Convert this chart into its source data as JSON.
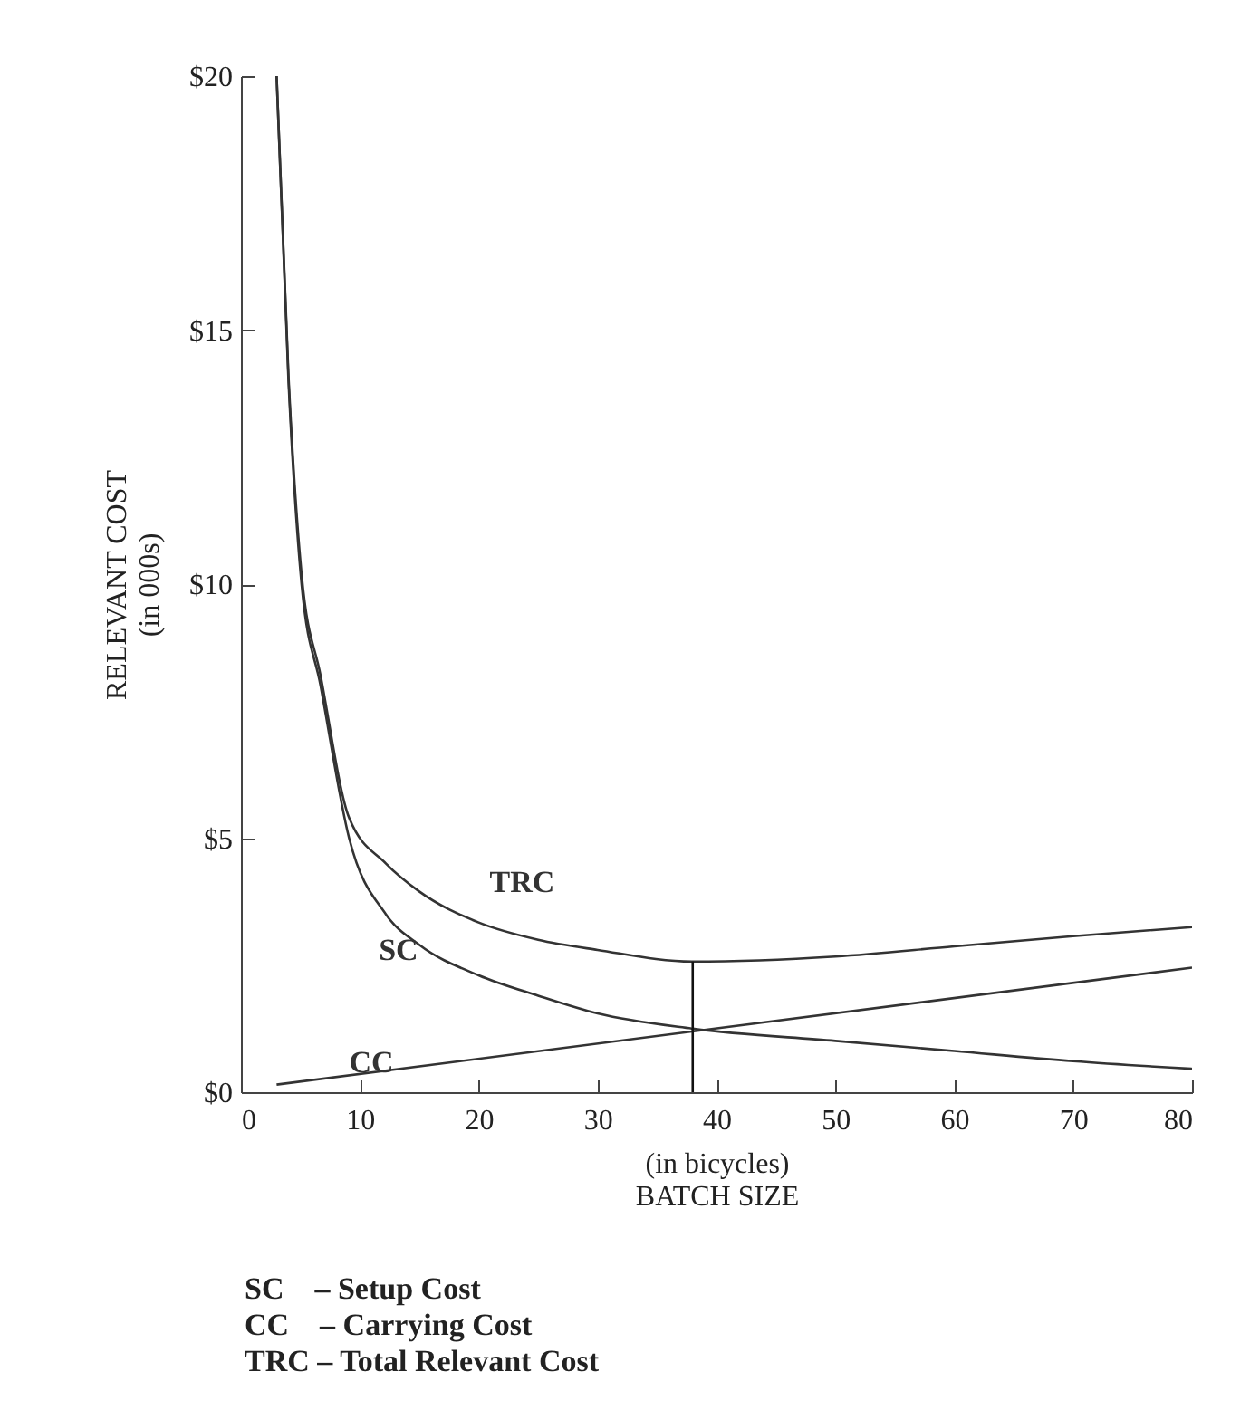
{
  "chart_data": {
    "type": "line",
    "xlabel": "(in bicycles)\nBATCH SIZE",
    "ylabel": "RELEVANT COST\n(in 000s)",
    "xlim": [
      0,
      80
    ],
    "ylim": [
      0,
      20
    ],
    "xticks": [
      0,
      10,
      20,
      30,
      40,
      50,
      60,
      70,
      80
    ],
    "yticks": [
      {
        "value": 0,
        "label": "$0"
      },
      {
        "value": 5,
        "label": "$5"
      },
      {
        "value": 10,
        "label": "$10"
      },
      {
        "value": 15,
        "label": "$15"
      },
      {
        "value": 20,
        "label": "$20"
      }
    ],
    "series": [
      {
        "name": "TRC",
        "color": "#333333",
        "x": [
          3,
          4,
          5.1,
          6.7,
          9.1,
          12.2,
          15,
          20,
          25,
          30,
          38,
          50,
          60,
          70,
          80
        ],
        "values": [
          20,
          14.1,
          10.2,
          8.2,
          5.4,
          4.5,
          3.95,
          3.34,
          3.0,
          2.8,
          2.57,
          2.67,
          2.87,
          3.07,
          3.25
        ]
      },
      {
        "name": "SC",
        "color": "#333333",
        "x": [
          3,
          4,
          5.1,
          6.7,
          9.1,
          12.2,
          15,
          20,
          25,
          30,
          38,
          50,
          60,
          70,
          80
        ],
        "values": [
          20,
          14,
          10,
          8,
          5,
          3.5,
          2.9,
          2.3,
          1.9,
          1.55,
          1.25,
          1.01,
          0.81,
          0.61,
          0.46
        ]
      },
      {
        "name": "CC",
        "color": "#333333",
        "x": [
          3,
          80
        ],
        "values": [
          0.15,
          2.45
        ]
      },
      {
        "color": "#111111",
        "x": [
          38,
          38
        ],
        "values": [
          0,
          2.57
        ]
      }
    ],
    "annotations": [
      "SC    – Setup Cost",
      "CC    – Carrying Cost",
      "TRC – Total Relevant Cost"
    ]
  }
}
